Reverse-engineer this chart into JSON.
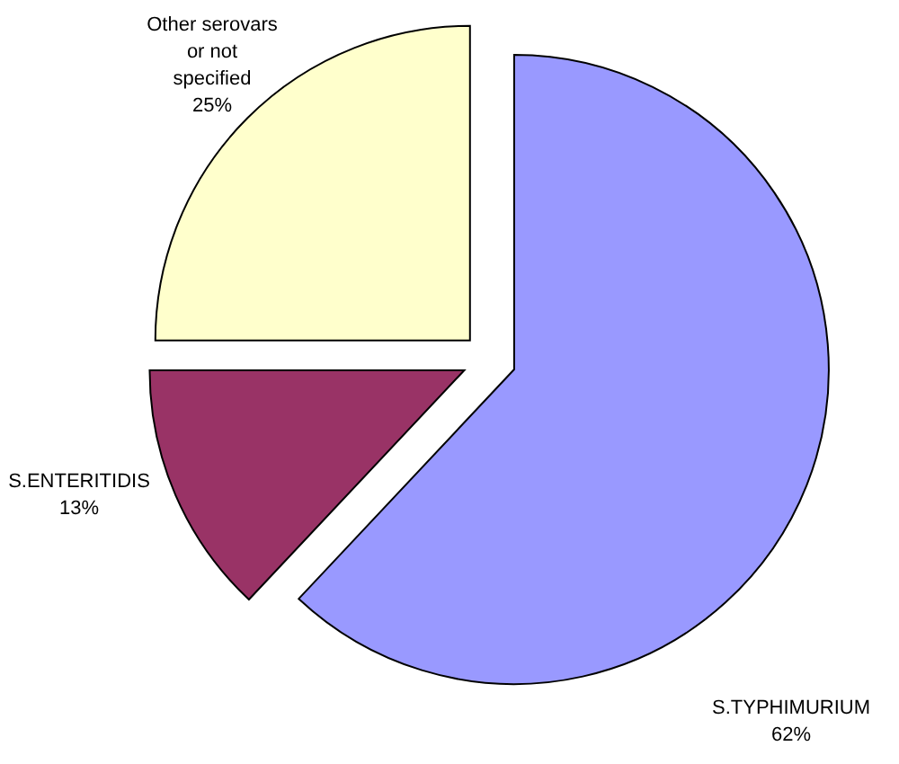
{
  "chart_data": {
    "type": "pie",
    "categories": [
      "S.TYPHIMURIUM",
      "S.ENTERITIDIS",
      "Other serovars or not specified"
    ],
    "values": [
      62,
      13,
      25
    ],
    "value_labels": [
      "62%",
      "13%",
      "25%"
    ],
    "colors": [
      "#9999ff",
      "#993366",
      "#ffffcc"
    ]
  }
}
